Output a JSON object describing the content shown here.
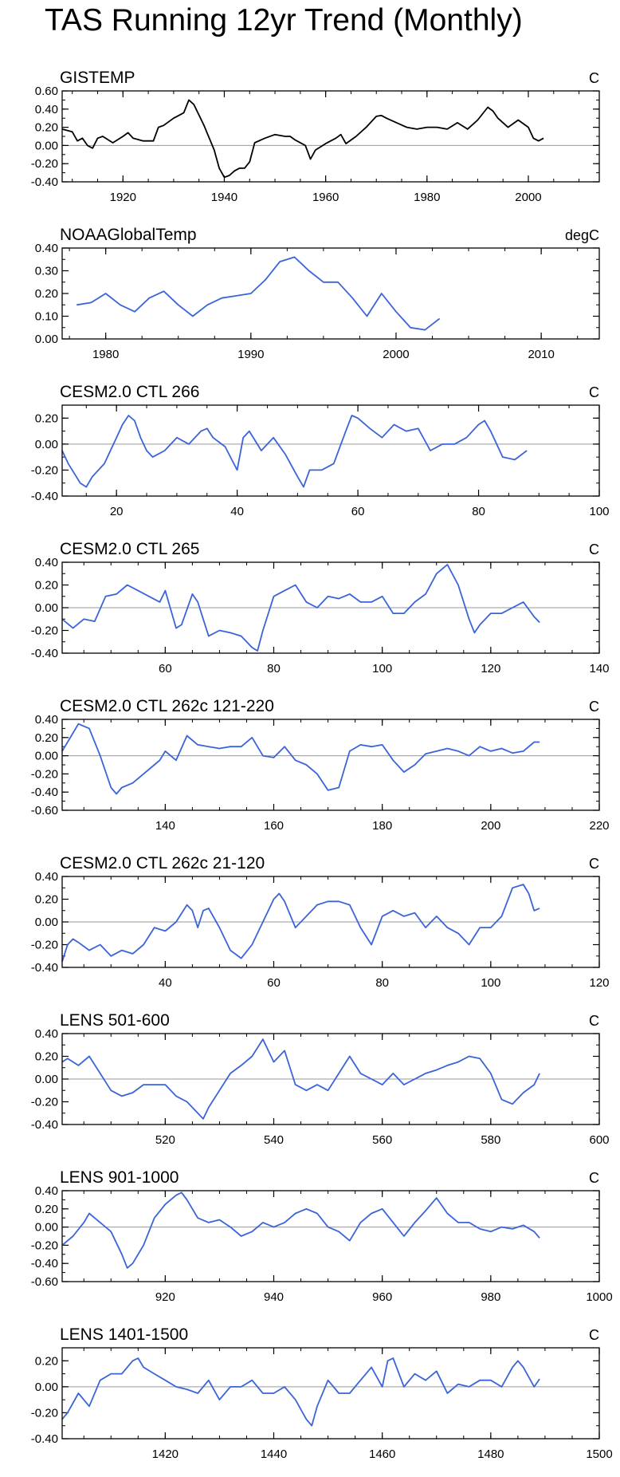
{
  "title": "TAS Running 12yr Trend (Monthly)",
  "colors": {
    "black": "#000000",
    "blue": "#3a64d8",
    "zero": "#9a9a9a"
  },
  "chart_data": [
    {
      "type": "line",
      "title": "GISTEMP",
      "unit": "C",
      "color": "black",
      "xlim": [
        1908,
        2014
      ],
      "ylim": [
        -0.4,
        0.6
      ],
      "xticks": [
        1920,
        1940,
        1960,
        1980,
        2000
      ],
      "yticks": [
        -0.4,
        -0.2,
        0.0,
        0.2,
        0.4,
        0.6
      ],
      "ytick_labels": [
        "-0.40",
        "-0.20",
        "0.00",
        "0.20",
        "0.40",
        "0.60"
      ],
      "x": [
        1908,
        1910,
        1911,
        1912,
        1913,
        1914,
        1915,
        1916,
        1918,
        1920,
        1921,
        1922,
        1924,
        1926,
        1927,
        1928,
        1930,
        1932,
        1933,
        1934,
        1936,
        1938,
        1939,
        1940,
        1941,
        1942,
        1943,
        1944,
        1945,
        1946,
        1948,
        1950,
        1952,
        1953,
        1954,
        1956,
        1957,
        1958,
        1960,
        1962,
        1963,
        1964,
        1966,
        1968,
        1970,
        1971,
        1972,
        1974,
        1976,
        1978,
        1980,
        1982,
        1984,
        1986,
        1988,
        1990,
        1992,
        1993,
        1994,
        1996,
        1998,
        2000,
        2001,
        2002,
        2003
      ],
      "y": [
        0.18,
        0.15,
        0.05,
        0.08,
        0.0,
        -0.03,
        0.08,
        0.1,
        0.03,
        0.1,
        0.14,
        0.08,
        0.05,
        0.05,
        0.2,
        0.22,
        0.3,
        0.36,
        0.5,
        0.45,
        0.22,
        -0.05,
        -0.25,
        -0.35,
        -0.33,
        -0.28,
        -0.25,
        -0.25,
        -0.18,
        0.03,
        0.08,
        0.12,
        0.1,
        0.1,
        0.06,
        0.0,
        -0.15,
        -0.05,
        0.02,
        0.08,
        0.12,
        0.02,
        0.1,
        0.2,
        0.32,
        0.33,
        0.3,
        0.25,
        0.2,
        0.18,
        0.2,
        0.2,
        0.18,
        0.25,
        0.18,
        0.28,
        0.42,
        0.38,
        0.3,
        0.2,
        0.28,
        0.2,
        0.08,
        0.05,
        0.08
      ]
    },
    {
      "type": "line",
      "title": "NOAAGlobalTemp",
      "unit": "degC",
      "color": "blue",
      "xlim": [
        1977,
        2014
      ],
      "ylim": [
        0.0,
        0.4
      ],
      "xticks": [
        1980,
        1990,
        2000,
        2010
      ],
      "yticks": [
        0.0,
        0.1,
        0.2,
        0.3,
        0.4
      ],
      "ytick_labels": [
        "0.00",
        "0.10",
        "0.20",
        "0.30",
        "0.40"
      ],
      "x": [
        1978,
        1979,
        1980,
        1981,
        1982,
        1983,
        1984,
        1985,
        1986,
        1987,
        1988,
        1989,
        1990,
        1991,
        1992,
        1993,
        1994,
        1995,
        1996,
        1997,
        1998,
        1999,
        2000,
        2001,
        2002,
        2003
      ],
      "y": [
        0.15,
        0.16,
        0.2,
        0.15,
        0.12,
        0.18,
        0.21,
        0.15,
        0.1,
        0.15,
        0.18,
        0.19,
        0.2,
        0.26,
        0.34,
        0.36,
        0.3,
        0.25,
        0.25,
        0.18,
        0.1,
        0.2,
        0.12,
        0.05,
        0.04,
        0.09
      ]
    },
    {
      "type": "line",
      "title": "CESM2.0 CTL 266",
      "unit": "C",
      "color": "blue",
      "xlim": [
        11,
        100
      ],
      "ylim": [
        -0.4,
        0.3
      ],
      "xticks": [
        20,
        40,
        60,
        80,
        100
      ],
      "yticks": [
        -0.4,
        -0.2,
        0.0,
        0.2
      ],
      "ytick_labels": [
        "-0.40",
        "-0.20",
        "0.00",
        "0.20"
      ],
      "x": [
        11,
        12,
        14,
        15,
        16,
        18,
        20,
        21,
        22,
        23,
        24,
        25,
        26,
        28,
        30,
        32,
        34,
        35,
        36,
        38,
        40,
        41,
        42,
        44,
        46,
        48,
        50,
        51,
        52,
        54,
        56,
        58,
        59,
        60,
        62,
        64,
        66,
        68,
        70,
        72,
        74,
        76,
        78,
        80,
        81,
        82,
        84,
        86,
        88
      ],
      "y": [
        -0.05,
        -0.15,
        -0.3,
        -0.33,
        -0.25,
        -0.15,
        0.05,
        0.15,
        0.22,
        0.18,
        0.05,
        -0.05,
        -0.1,
        -0.05,
        0.05,
        0.0,
        0.1,
        0.12,
        0.05,
        -0.02,
        -0.2,
        0.05,
        0.1,
        -0.05,
        0.05,
        -0.08,
        -0.25,
        -0.33,
        -0.2,
        -0.2,
        -0.15,
        0.1,
        0.22,
        0.2,
        0.12,
        0.05,
        0.15,
        0.1,
        0.12,
        -0.05,
        0.0,
        0.0,
        0.05,
        0.15,
        0.18,
        0.1,
        -0.1,
        -0.12,
        -0.05
      ]
    },
    {
      "type": "line",
      "title": "CESM2.0 CTL 265",
      "unit": "C",
      "color": "blue",
      "xlim": [
        41,
        140
      ],
      "ylim": [
        -0.4,
        0.4
      ],
      "xticks": [
        60,
        80,
        100,
        120,
        140
      ],
      "yticks": [
        -0.4,
        -0.2,
        0.0,
        0.2,
        0.4
      ],
      "ytick_labels": [
        "-0.40",
        "-0.20",
        "0.00",
        "0.20",
        "0.40"
      ],
      "x": [
        41,
        43,
        45,
        47,
        49,
        51,
        53,
        55,
        57,
        59,
        60,
        62,
        63,
        65,
        66,
        68,
        70,
        72,
        74,
        76,
        77,
        78,
        80,
        82,
        84,
        86,
        88,
        90,
        92,
        94,
        96,
        98,
        100,
        102,
        104,
        106,
        108,
        110,
        112,
        114,
        116,
        117,
        118,
        120,
        122,
        124,
        126,
        128,
        129
      ],
      "y": [
        -0.1,
        -0.18,
        -0.1,
        -0.12,
        0.1,
        0.12,
        0.2,
        0.15,
        0.1,
        0.05,
        0.15,
        -0.18,
        -0.15,
        0.12,
        0.05,
        -0.25,
        -0.2,
        -0.22,
        -0.25,
        -0.35,
        -0.38,
        -0.2,
        0.1,
        0.15,
        0.2,
        0.05,
        0.0,
        0.1,
        0.08,
        0.12,
        0.05,
        0.05,
        0.1,
        -0.05,
        -0.05,
        0.05,
        0.12,
        0.3,
        0.38,
        0.2,
        -0.1,
        -0.22,
        -0.15,
        -0.05,
        -0.05,
        0.0,
        0.05,
        -0.08,
        -0.13
      ]
    },
    {
      "type": "line",
      "title": "CESM2.0 CTL 262c 121-220",
      "unit": "C",
      "color": "blue",
      "xlim": [
        121,
        220
      ],
      "ylim": [
        -0.6,
        0.4
      ],
      "xticks": [
        140,
        160,
        180,
        200,
        220
      ],
      "yticks": [
        -0.6,
        -0.4,
        -0.2,
        0.0,
        0.2,
        0.4
      ],
      "ytick_labels": [
        "-0.60",
        "-0.40",
        "-0.20",
        "0.00",
        "0.20",
        "0.40"
      ],
      "x": [
        121,
        122,
        124,
        126,
        128,
        130,
        131,
        132,
        134,
        136,
        138,
        139,
        140,
        142,
        144,
        146,
        148,
        150,
        152,
        154,
        156,
        158,
        160,
        162,
        164,
        166,
        168,
        170,
        172,
        174,
        176,
        178,
        180,
        182,
        184,
        186,
        188,
        190,
        192,
        194,
        196,
        198,
        200,
        202,
        204,
        206,
        208,
        209
      ],
      "y": [
        0.05,
        0.15,
        0.35,
        0.3,
        0.0,
        -0.35,
        -0.42,
        -0.35,
        -0.3,
        -0.2,
        -0.1,
        -0.05,
        0.05,
        -0.05,
        0.22,
        0.12,
        0.1,
        0.08,
        0.1,
        0.1,
        0.2,
        0.0,
        -0.02,
        0.1,
        -0.05,
        -0.1,
        -0.2,
        -0.38,
        -0.35,
        0.05,
        0.12,
        0.1,
        0.12,
        -0.05,
        -0.18,
        -0.1,
        0.02,
        0.05,
        0.08,
        0.05,
        0.0,
        0.1,
        0.05,
        0.08,
        0.03,
        0.05,
        0.15,
        0.15
      ]
    },
    {
      "type": "line",
      "title": "CESM2.0 CTL 262c 21-120",
      "unit": "C",
      "color": "blue",
      "xlim": [
        21,
        120
      ],
      "ylim": [
        -0.4,
        0.4
      ],
      "xticks": [
        40,
        60,
        80,
        100,
        120
      ],
      "yticks": [
        -0.4,
        -0.2,
        0.0,
        0.2,
        0.4
      ],
      "ytick_labels": [
        "-0.40",
        "-0.20",
        "0.00",
        "0.20",
        "0.40"
      ],
      "x": [
        21,
        22,
        23,
        24,
        26,
        28,
        30,
        32,
        34,
        36,
        38,
        40,
        42,
        44,
        45,
        46,
        47,
        48,
        50,
        52,
        54,
        56,
        58,
        60,
        61,
        62,
        64,
        66,
        68,
        70,
        72,
        74,
        76,
        78,
        80,
        82,
        84,
        86,
        88,
        90,
        92,
        94,
        96,
        98,
        100,
        102,
        104,
        106,
        107,
        108,
        109
      ],
      "y": [
        -0.35,
        -0.2,
        -0.15,
        -0.18,
        -0.25,
        -0.2,
        -0.3,
        -0.25,
        -0.28,
        -0.2,
        -0.05,
        -0.08,
        0.0,
        0.15,
        0.1,
        -0.05,
        0.1,
        0.12,
        -0.05,
        -0.25,
        -0.32,
        -0.2,
        0.0,
        0.2,
        0.25,
        0.18,
        -0.05,
        0.05,
        0.15,
        0.18,
        0.18,
        0.15,
        -0.05,
        -0.2,
        0.05,
        0.1,
        0.05,
        0.08,
        -0.05,
        0.05,
        -0.05,
        -0.1,
        -0.2,
        -0.05,
        -0.05,
        0.05,
        0.3,
        0.33,
        0.25,
        0.1,
        0.12
      ]
    },
    {
      "type": "line",
      "title": "LENS 501-600",
      "unit": "C",
      "color": "blue",
      "xlim": [
        501,
        600
      ],
      "ylim": [
        -0.4,
        0.4
      ],
      "xticks": [
        520,
        540,
        560,
        580,
        600
      ],
      "yticks": [
        -0.4,
        -0.2,
        0.0,
        0.2,
        0.4
      ],
      "ytick_labels": [
        "-0.40",
        "-0.20",
        "0.00",
        "0.20",
        "0.40"
      ],
      "x": [
        501,
        502,
        504,
        506,
        508,
        510,
        512,
        514,
        516,
        518,
        520,
        522,
        524,
        526,
        527,
        528,
        530,
        532,
        534,
        536,
        538,
        540,
        542,
        544,
        546,
        548,
        550,
        552,
        554,
        556,
        558,
        560,
        562,
        564,
        566,
        568,
        570,
        572,
        574,
        576,
        578,
        580,
        582,
        584,
        586,
        588,
        589
      ],
      "y": [
        0.15,
        0.18,
        0.12,
        0.2,
        0.05,
        -0.1,
        -0.15,
        -0.12,
        -0.05,
        -0.05,
        -0.05,
        -0.15,
        -0.2,
        -0.3,
        -0.35,
        -0.25,
        -0.1,
        0.05,
        0.12,
        0.2,
        0.35,
        0.15,
        0.25,
        -0.05,
        -0.1,
        -0.05,
        -0.1,
        0.05,
        0.2,
        0.05,
        0.0,
        -0.05,
        0.05,
        -0.05,
        0.0,
        0.05,
        0.08,
        0.12,
        0.15,
        0.2,
        0.18,
        0.05,
        -0.18,
        -0.22,
        -0.12,
        -0.05,
        0.05
      ]
    },
    {
      "type": "line",
      "title": "LENS 901-1000",
      "unit": "C",
      "color": "blue",
      "xlim": [
        901,
        1000
      ],
      "ylim": [
        -0.6,
        0.4
      ],
      "xticks": [
        920,
        940,
        960,
        980,
        1000
      ],
      "yticks": [
        -0.6,
        -0.4,
        -0.2,
        0.0,
        0.2,
        0.4
      ],
      "ytick_labels": [
        "-0.60",
        "-0.40",
        "-0.20",
        "0.00",
        "0.20",
        "0.40"
      ],
      "x": [
        901,
        903,
        905,
        906,
        908,
        910,
        912,
        913,
        914,
        916,
        918,
        920,
        922,
        923,
        924,
        926,
        928,
        930,
        932,
        934,
        936,
        938,
        940,
        942,
        944,
        946,
        948,
        950,
        952,
        954,
        956,
        958,
        960,
        962,
        964,
        966,
        968,
        970,
        972,
        974,
        976,
        978,
        980,
        982,
        984,
        986,
        988,
        989
      ],
      "y": [
        -0.2,
        -0.1,
        0.05,
        0.15,
        0.05,
        -0.05,
        -0.3,
        -0.45,
        -0.4,
        -0.2,
        0.1,
        0.25,
        0.35,
        0.38,
        0.3,
        0.1,
        0.05,
        0.08,
        0.0,
        -0.1,
        -0.05,
        0.05,
        0.0,
        0.05,
        0.15,
        0.2,
        0.15,
        0.0,
        -0.05,
        -0.15,
        0.05,
        0.15,
        0.2,
        0.05,
        -0.1,
        0.05,
        0.18,
        0.32,
        0.15,
        0.05,
        0.05,
        -0.02,
        -0.05,
        0.0,
        -0.02,
        0.02,
        -0.05,
        -0.12
      ]
    },
    {
      "type": "line",
      "title": "LENS 1401-1500",
      "unit": "C",
      "color": "blue",
      "xlim": [
        1401,
        1500
      ],
      "ylim": [
        -0.4,
        0.3
      ],
      "xticks": [
        1420,
        1440,
        1460,
        1480,
        1500
      ],
      "yticks": [
        -0.4,
        -0.2,
        0.0,
        0.2
      ],
      "ytick_labels": [
        "-0.40",
        "-0.20",
        "0.00",
        "0.20"
      ],
      "x": [
        1401,
        1402,
        1404,
        1406,
        1408,
        1410,
        1412,
        1414,
        1415,
        1416,
        1418,
        1420,
        1422,
        1424,
        1426,
        1428,
        1430,
        1432,
        1434,
        1436,
        1438,
        1440,
        1442,
        1444,
        1446,
        1447,
        1448,
        1450,
        1452,
        1454,
        1456,
        1458,
        1460,
        1461,
        1462,
        1464,
        1466,
        1468,
        1470,
        1472,
        1474,
        1476,
        1478,
        1480,
        1482,
        1484,
        1485,
        1486,
        1488,
        1489
      ],
      "y": [
        -0.25,
        -0.2,
        -0.05,
        -0.15,
        0.05,
        0.1,
        0.1,
        0.2,
        0.22,
        0.15,
        0.1,
        0.05,
        0.0,
        -0.02,
        -0.05,
        0.05,
        -0.1,
        0.0,
        0.0,
        0.05,
        -0.05,
        -0.05,
        0.0,
        -0.1,
        -0.25,
        -0.3,
        -0.15,
        0.05,
        -0.05,
        -0.05,
        0.05,
        0.15,
        0.0,
        0.2,
        0.22,
        0.0,
        0.1,
        0.05,
        0.12,
        -0.05,
        0.02,
        0.0,
        0.05,
        0.05,
        0.0,
        0.15,
        0.2,
        0.15,
        0.0,
        0.06
      ]
    }
  ]
}
